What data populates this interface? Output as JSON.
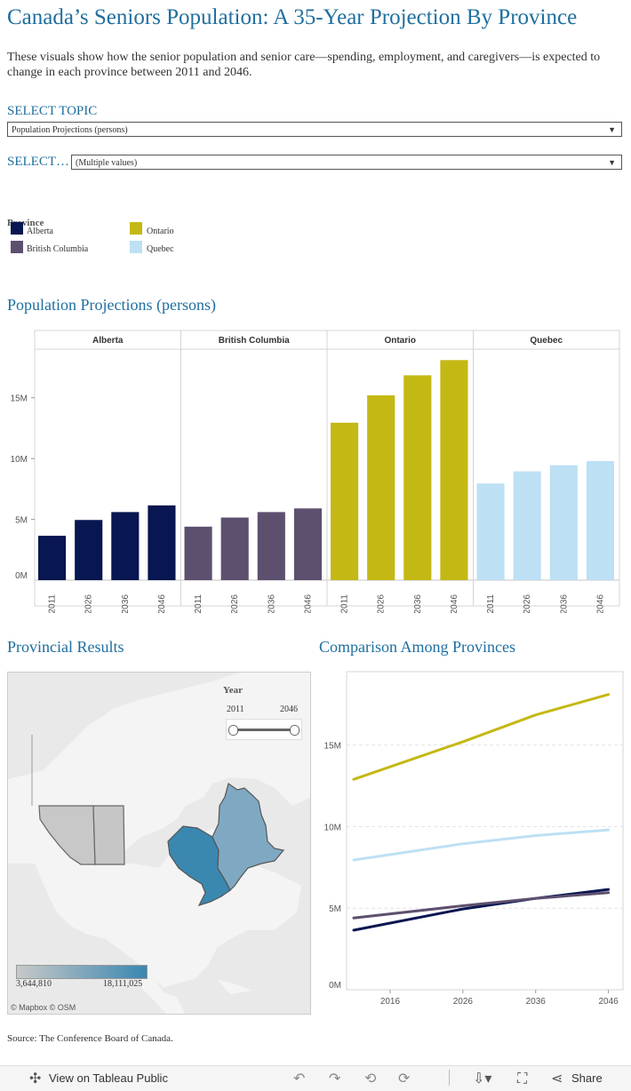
{
  "title": "Canada’s Seniors Population: A 35-Year Projection By Province",
  "description": "These visuals show how the senior population and senior care—spending, employment, and caregivers—is expected to change in each province between 2011 and 2046.",
  "filters": {
    "topic_label": "SELECT TOPIC",
    "topic_value": "Population Projections (persons)",
    "select_label": "SELECT…",
    "select_value": "(Multiple values)"
  },
  "legend": {
    "title": "Province",
    "items": [
      {
        "name": "Alberta",
        "color": "#081651"
      },
      {
        "name": "British Columbia",
        "color": "#5d506f"
      },
      {
        "name": "Ontario",
        "color": "#c4b814"
      },
      {
        "name": "Quebec",
        "color": "#bde0f4"
      }
    ]
  },
  "sections": {
    "bar_title": "Population Projections (persons)",
    "map_title": "Provincial Results",
    "line_title": "Comparison Among Provinces"
  },
  "map": {
    "year_label": "Year",
    "year_start": "2011",
    "year_end": "2046",
    "scale_min": "3,644,810",
    "scale_max": "18,111,025",
    "attribution": "© Mapbox  © OSM",
    "colors": {
      "low": "#c8c8c8",
      "high": "#3a87b0"
    }
  },
  "source": "Source: The Conference Board of Canada.",
  "toolbar": {
    "view_label": "View on Tableau Public",
    "share_label": "Share",
    "icons": [
      "undo-icon",
      "redo-icon",
      "revert-icon",
      "refresh-icon",
      "download-icon",
      "fullscreen-icon",
      "share-icon"
    ]
  },
  "chart_data": [
    {
      "type": "bar",
      "panels": [
        "Alberta",
        "British Columbia",
        "Ontario",
        "Quebec"
      ],
      "categories": [
        "2011",
        "2026",
        "2036",
        "2046"
      ],
      "series": [
        {
          "name": "Alberta",
          "values": [
            3.65,
            4.95,
            5.6,
            6.15
          ]
        },
        {
          "name": "British Columbia",
          "values": [
            4.4,
            5.15,
            5.6,
            5.9
          ]
        },
        {
          "name": "Ontario",
          "values": [
            12.95,
            15.2,
            16.85,
            18.1
          ]
        },
        {
          "name": "Quebec",
          "values": [
            7.95,
            8.95,
            9.45,
            9.8
          ]
        }
      ],
      "y_ticks": [
        "0M",
        "5M",
        "10M",
        "15M"
      ],
      "ylim": [
        0,
        19
      ]
    },
    {
      "type": "line",
      "x": [
        2011,
        2026,
        2036,
        2046
      ],
      "x_ticks": [
        "2016",
        "2026",
        "2036",
        "2046"
      ],
      "series": [
        {
          "name": "Alberta",
          "values": [
            3.65,
            4.95,
            5.6,
            6.15
          ]
        },
        {
          "name": "British Columbia",
          "values": [
            4.4,
            5.15,
            5.6,
            5.95
          ]
        },
        {
          "name": "Ontario",
          "values": [
            12.9,
            15.2,
            16.85,
            18.1
          ]
        },
        {
          "name": "Quebec",
          "values": [
            7.95,
            8.95,
            9.45,
            9.8
          ]
        }
      ],
      "y_ticks": [
        "0M",
        "5M",
        "10M",
        "15M"
      ],
      "ylim": [
        0,
        19.5
      ]
    }
  ]
}
